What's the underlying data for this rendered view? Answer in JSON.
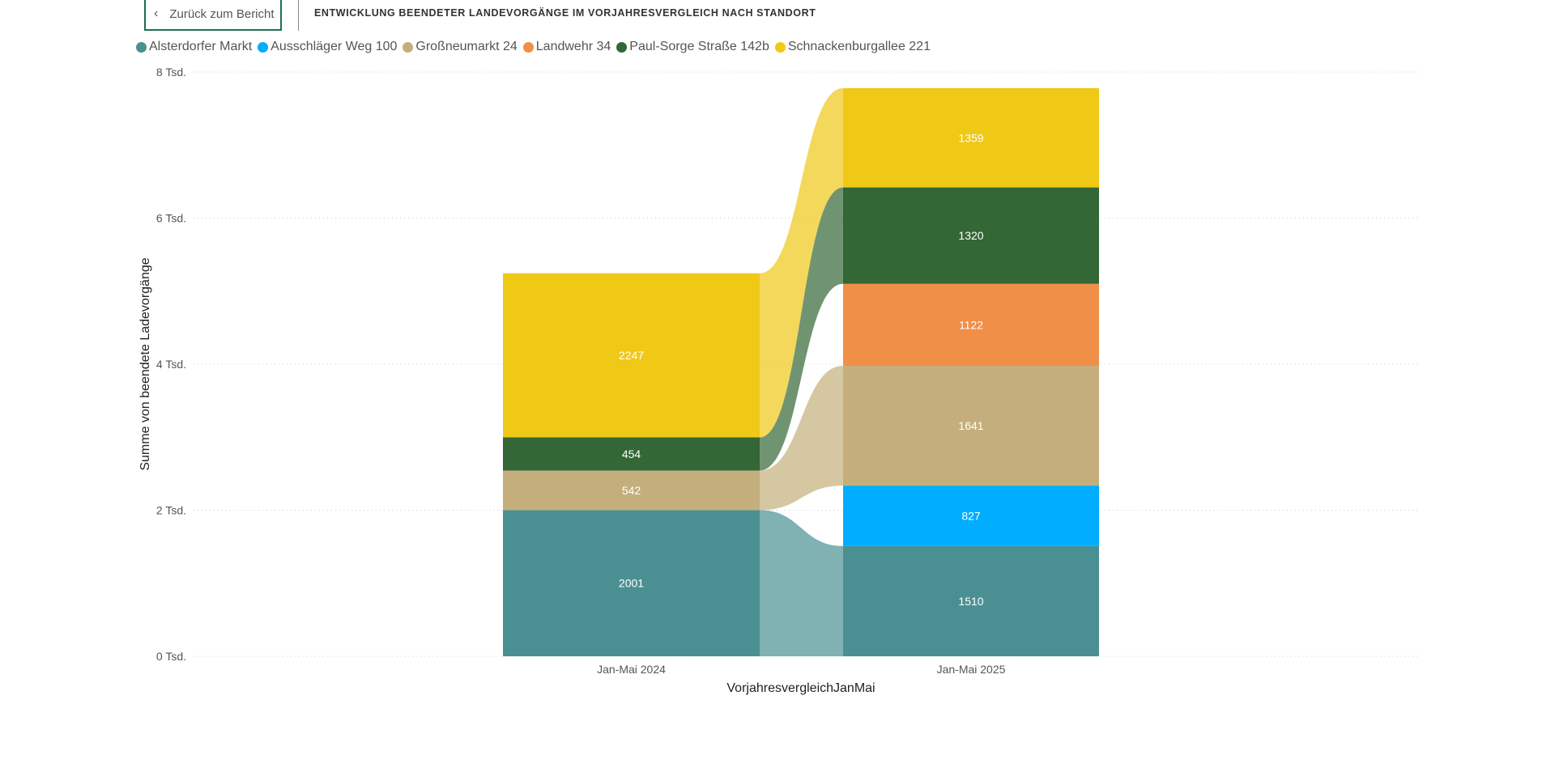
{
  "header": {
    "back_button": "Zurück zum Bericht",
    "title": "ENTWICKLUNG BEENDETER LANDEVORGÄNGE IM VORJAHRESVERGLEICH NACH STANDORT"
  },
  "chart_data": {
    "type": "ribbon-stacked-bar",
    "title": "ENTWICKLUNG BEENDETER LANDEVORGÄNGE IM VORJAHRESVERGLEICH NACH STANDORT",
    "xlabel": "VorjahresvergleichJanMai",
    "ylabel": "Summe von beendete Ladevorgänge",
    "ylim": [
      0,
      8000
    ],
    "yticks": [
      0,
      2000,
      4000,
      6000,
      8000
    ],
    "ytick_labels": [
      "0 Tsd.",
      "2 Tsd.",
      "4 Tsd.",
      "6 Tsd.",
      "8 Tsd."
    ],
    "grid": true,
    "legend_position": "top-left",
    "categories": [
      "Jan-Mai 2024",
      "Jan-Mai 2025"
    ],
    "series": [
      {
        "name": "Alsterdorfer Markt",
        "color": "#4A9093",
        "values": [
          2001,
          1510
        ]
      },
      {
        "name": "Ausschläger Weg 100",
        "color": "#01ADFF",
        "values": [
          null,
          827
        ]
      },
      {
        "name": "Großneumarkt 24",
        "color": "#C4AF7C",
        "values": [
          542,
          1641
        ]
      },
      {
        "name": "Landwehr 34",
        "color": "#F08F48",
        "values": [
          null,
          1122
        ]
      },
      {
        "name": "Paul-Sorge Straße 142b",
        "color": "#336735",
        "values": [
          454,
          1320
        ]
      },
      {
        "name": "Schnackenburgallee 221",
        "color": "#F0C816",
        "values": [
          2247,
          1359
        ]
      }
    ]
  }
}
